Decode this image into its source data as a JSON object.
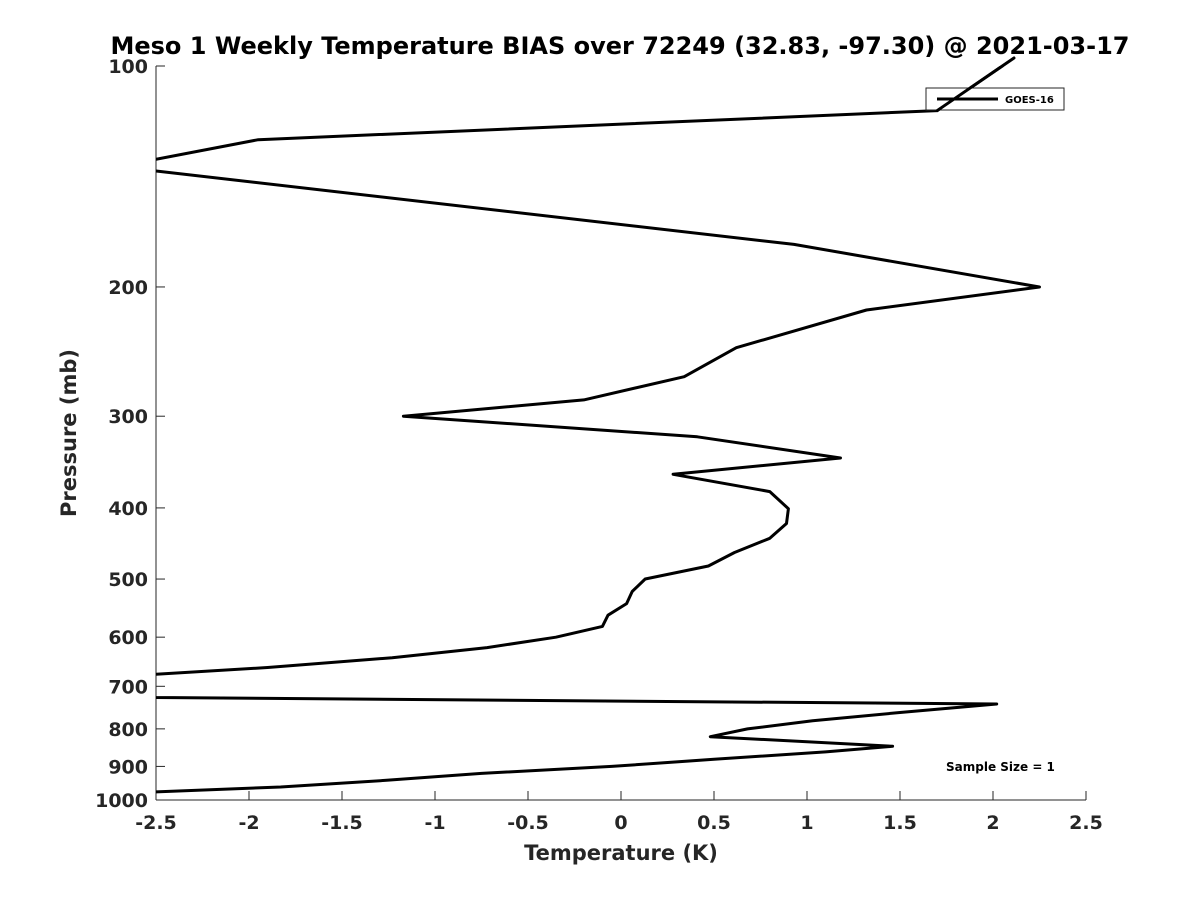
{
  "chart_data": {
    "type": "line",
    "title": "Meso 1 Weekly Temperature BIAS over 72249 (32.83, -97.30) @ 2021-03-17",
    "xlabel": "Temperature (K)",
    "ylabel": "Pressure (mb)",
    "xlim": [
      -2.5,
      2.5
    ],
    "ylim": [
      100,
      1000
    ],
    "y_scale": "log",
    "y_direction": "reversed",
    "grid": false,
    "x_ticks": [
      -2.5,
      -2,
      -1.5,
      -1,
      -0.5,
      0,
      0.5,
      1,
      1.5,
      2,
      2.5
    ],
    "x_tick_labels": [
      "-2.5",
      "-2",
      "-1.5",
      "-1",
      "-0.5",
      "0",
      "0.5",
      "1",
      "1.5",
      "2",
      "2.5"
    ],
    "y_ticks": [
      100,
      200,
      300,
      400,
      500,
      600,
      700,
      800,
      900,
      1000
    ],
    "y_tick_labels": [
      "100",
      "200",
      "300",
      "400",
      "500",
      "600",
      "700",
      "800",
      "900",
      "1000"
    ],
    "legend_position": "top-right",
    "annotation": "Sample Size = 1",
    "series": [
      {
        "name": "GOES-16",
        "color": "#000000",
        "points": [
          {
            "x": 2.05,
            "p": 100
          },
          {
            "x": 1.7,
            "p": 115
          },
          {
            "x": -1.95,
            "p": 126
          },
          {
            "x": -2.5,
            "p": 134
          },
          {
            "x": -3.0,
            "p": 138
          },
          {
            "x": -2.5,
            "p": 139
          },
          {
            "x": 0.93,
            "p": 175
          },
          {
            "x": 2.25,
            "p": 200
          },
          {
            "x": 1.32,
            "p": 215
          },
          {
            "x": 0.62,
            "p": 242
          },
          {
            "x": 0.34,
            "p": 265
          },
          {
            "x": -0.2,
            "p": 285
          },
          {
            "x": -1.17,
            "p": 300
          },
          {
            "x": 0.41,
            "p": 320
          },
          {
            "x": 1.18,
            "p": 342
          },
          {
            "x": 0.28,
            "p": 360
          },
          {
            "x": 0.8,
            "p": 380
          },
          {
            "x": 0.9,
            "p": 401
          },
          {
            "x": 0.89,
            "p": 420
          },
          {
            "x": 0.8,
            "p": 440
          },
          {
            "x": 0.61,
            "p": 460
          },
          {
            "x": 0.47,
            "p": 480
          },
          {
            "x": 0.13,
            "p": 500
          },
          {
            "x": 0.06,
            "p": 520
          },
          {
            "x": 0.03,
            "p": 540
          },
          {
            "x": -0.07,
            "p": 560
          },
          {
            "x": -0.1,
            "p": 580
          },
          {
            "x": -0.35,
            "p": 600
          },
          {
            "x": -0.72,
            "p": 620
          },
          {
            "x": -1.23,
            "p": 640
          },
          {
            "x": -1.9,
            "p": 660
          },
          {
            "x": -2.5,
            "p": 674
          },
          {
            "x": -3.0,
            "p": 690
          },
          {
            "x": -2.5,
            "p": 725
          },
          {
            "x": 2.02,
            "p": 740
          },
          {
            "x": 1.5,
            "p": 760
          },
          {
            "x": 1.03,
            "p": 780
          },
          {
            "x": 0.68,
            "p": 800
          },
          {
            "x": 0.48,
            "p": 820
          },
          {
            "x": 1.46,
            "p": 845
          },
          {
            "x": 1.1,
            "p": 860
          },
          {
            "x": 0.5,
            "p": 880
          },
          {
            "x": -0.05,
            "p": 900
          },
          {
            "x": -0.75,
            "p": 920
          },
          {
            "x": -1.26,
            "p": 940
          },
          {
            "x": -1.83,
            "p": 960
          },
          {
            "x": -2.5,
            "p": 975
          },
          {
            "x": -3.0,
            "p": 985
          }
        ]
      }
    ]
  }
}
